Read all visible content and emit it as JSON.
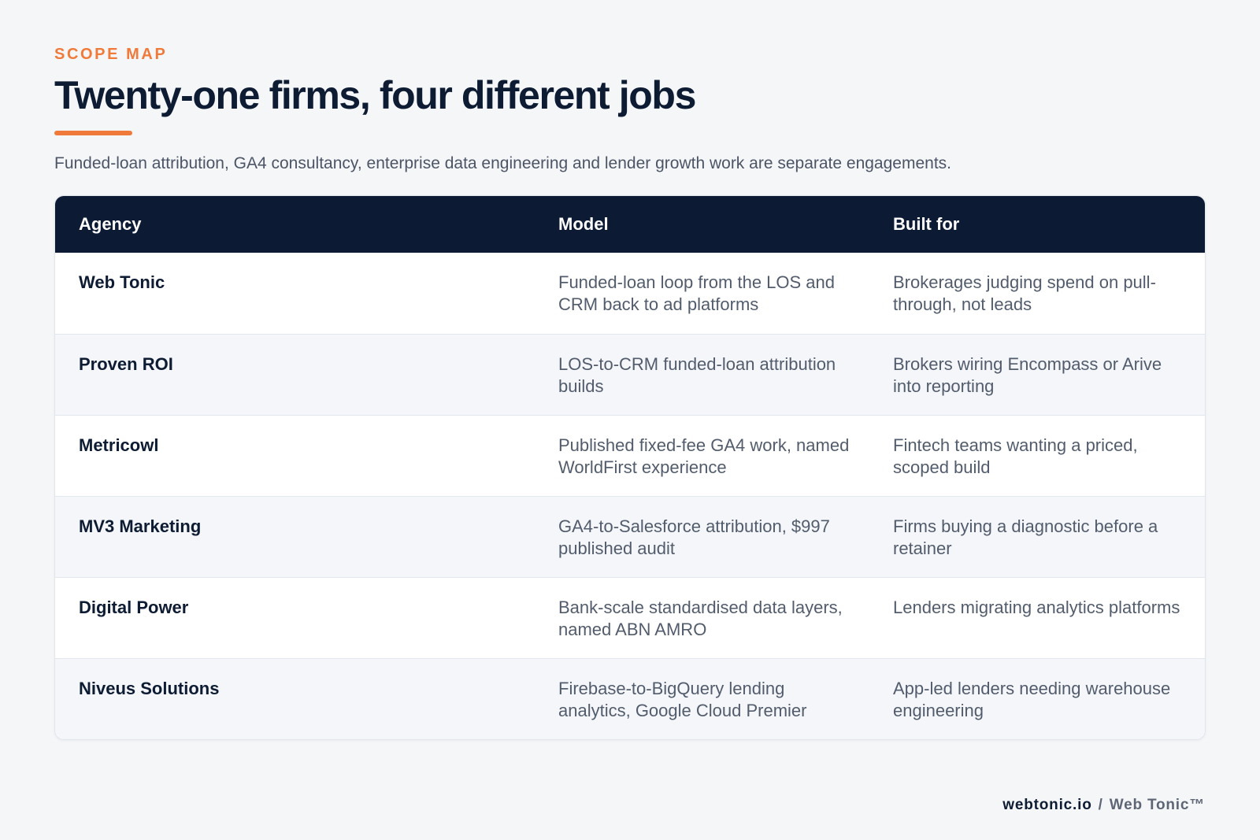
{
  "eyebrow": "SCOPE MAP",
  "title": "Twenty-one firms, four different jobs",
  "subtitle": "Funded-loan attribution, GA4 consultancy, enterprise data engineering and lender growth work are separate engagements.",
  "table": {
    "headers": {
      "agency": "Agency",
      "model": "Model",
      "built_for": "Built for"
    },
    "rows": [
      {
        "agency": "Web Tonic",
        "model": "Funded-loan loop from the LOS and CRM back to ad platforms",
        "built_for": "Brokerages judging spend on pull-through, not leads"
      },
      {
        "agency": "Proven ROI",
        "model": "LOS-to-CRM funded-loan attribution builds",
        "built_for": "Brokers wiring Encompass or Arive into reporting"
      },
      {
        "agency": "Metricowl",
        "model": "Published fixed-fee GA4 work, named WorldFirst experience",
        "built_for": "Fintech teams wanting a priced, scoped build"
      },
      {
        "agency": "MV3 Marketing",
        "model": "GA4-to-Salesforce attribution, $997 published audit",
        "built_for": "Firms buying a diagnostic before a retainer"
      },
      {
        "agency": "Digital Power",
        "model": "Bank-scale standardised data layers, named ABN AMRO",
        "built_for": "Lenders migrating analytics platforms"
      },
      {
        "agency": "Niveus Solutions",
        "model": "Firebase-to-BigQuery lending analytics, Google Cloud Premier",
        "built_for": "App-led lenders needing warehouse engineering"
      }
    ]
  },
  "footer": {
    "site": "webtonic.io",
    "separator": "/",
    "brand": "Web Tonic™"
  },
  "colors": {
    "accent": "#f07a3a",
    "navy": "#0c1a33",
    "text_muted": "#525c6c",
    "row_alt": "#f4f6f9"
  }
}
